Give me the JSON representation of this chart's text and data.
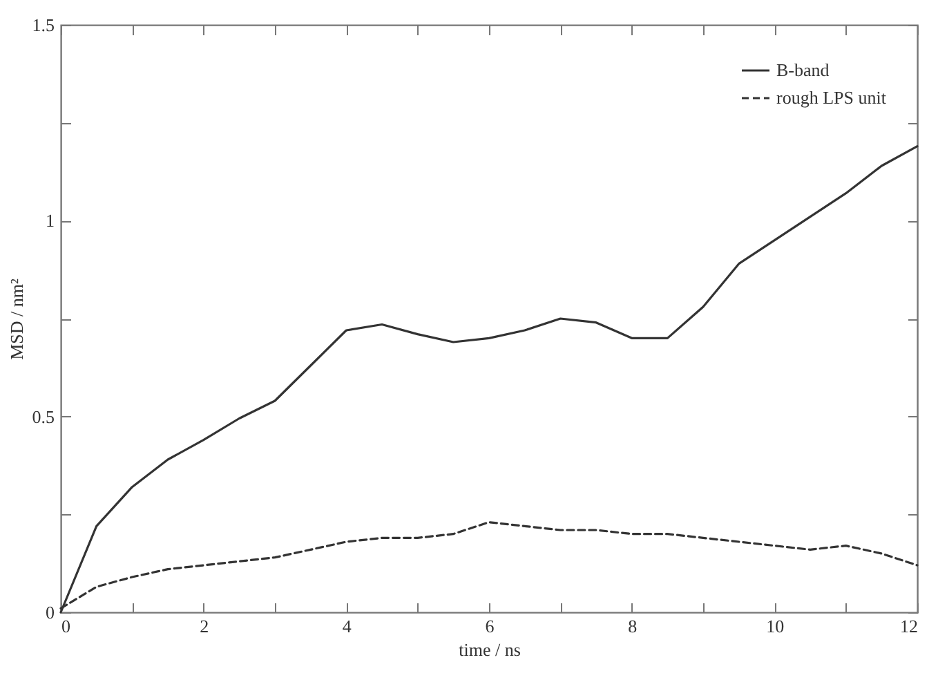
{
  "chart_data": {
    "type": "line",
    "xlabel": "time / ns",
    "ylabel": "MSD / nm²",
    "xlim": [
      0,
      12
    ],
    "ylim": [
      0,
      1.5
    ],
    "xticks": [
      0,
      {
        "value": 1,
        "label": null
      },
      2,
      {
        "value": 3,
        "label": null
      },
      4,
      {
        "value": 5,
        "label": null
      },
      6,
      {
        "value": 7,
        "label": null
      },
      8,
      {
        "value": 9,
        "label": null
      },
      10,
      {
        "value": 11,
        "label": null
      },
      12
    ],
    "yticks": [
      0,
      {
        "value": 0.25,
        "label": null
      },
      0.5,
      {
        "value": 0.75,
        "label": null
      },
      1,
      {
        "value": 1.25,
        "label": null
      },
      1.5
    ],
    "grid": false,
    "legend": "top right",
    "marker": "none",
    "x": [
      0,
      0.5,
      1,
      1.5,
      2,
      2.5,
      3,
      3.5,
      4,
      4.5,
      5,
      5.5,
      6,
      6.5,
      7,
      7.5,
      8,
      8.5,
      9,
      9.5,
      10,
      10.5,
      11,
      11.5,
      12
    ],
    "series": [
      {
        "name": "B-band",
        "color": "#333333",
        "line_style": "solid",
        "values": [
          0,
          0.22,
          0.32,
          0.39,
          0.44,
          0.495,
          0.54,
          0.63,
          0.72,
          0.735,
          0.71,
          0.69,
          0.7,
          0.72,
          0.75,
          0.74,
          0.7,
          0.7,
          0.78,
          0.89,
          0.95,
          1.01,
          1.07,
          1.14,
          1.19
        ]
      },
      {
        "name": "rough LPS unit",
        "color": "#333333",
        "line_style": "dashed",
        "values": [
          0.01,
          0.065,
          0.09,
          0.11,
          0.12,
          0.13,
          0.14,
          0.16,
          0.18,
          0.19,
          0.19,
          0.2,
          0.23,
          0.22,
          0.21,
          0.21,
          0.2,
          0.2,
          0.19,
          0.18,
          0.17,
          0.16,
          0.17,
          0.15,
          0.12
        ]
      }
    ]
  }
}
